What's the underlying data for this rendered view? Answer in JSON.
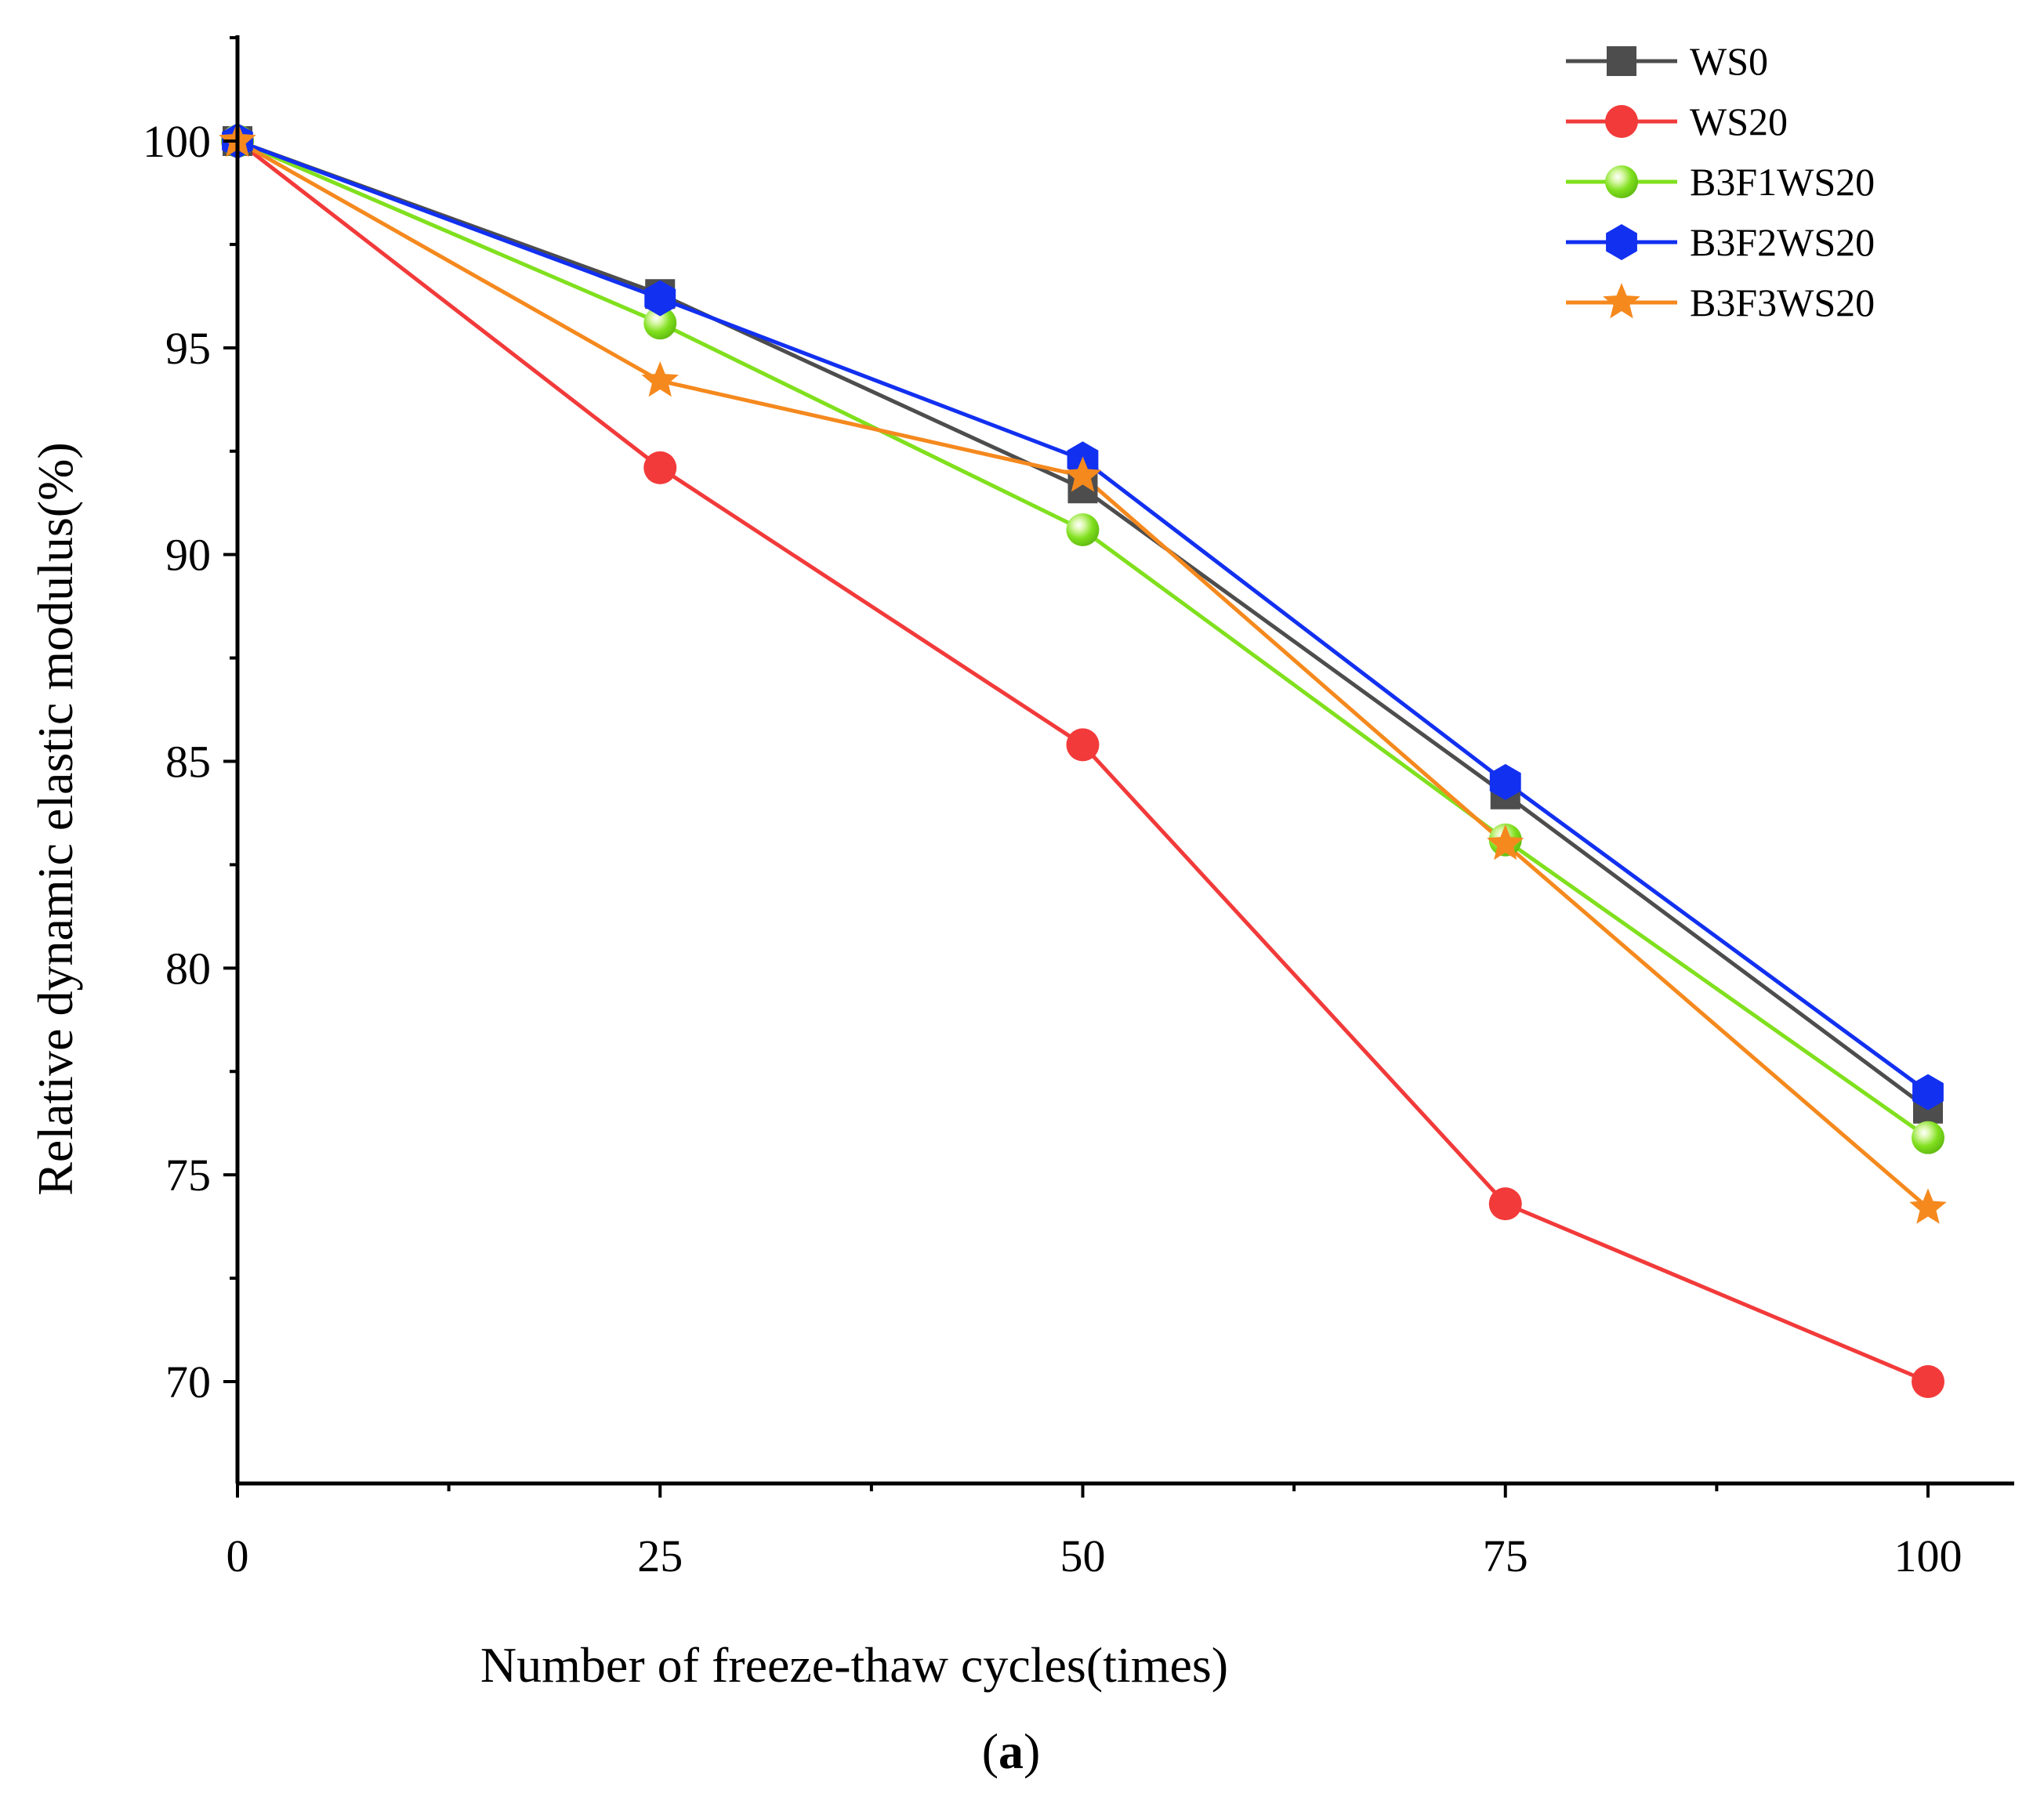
{
  "chart_data": {
    "type": "line",
    "xlabel": "Number of freeze-thaw cycles(times)",
    "ylabel": "Relative dynamic elastic modulus(%)",
    "caption": {
      "open": "(",
      "letter": "a",
      "close": ")"
    },
    "xlim": [
      0,
      104
    ],
    "ylim": [
      67.5,
      102.5
    ],
    "xticks": [
      0,
      25,
      50,
      75,
      100
    ],
    "xminor": [
      12.5,
      37.5,
      62.5,
      87.5
    ],
    "yticks": [
      70,
      75,
      80,
      85,
      90,
      95,
      100
    ],
    "yminor": [
      72.5,
      77.5,
      82.5,
      87.5,
      92.5,
      97.5
    ],
    "x": [
      0,
      25,
      50,
      75,
      100
    ],
    "series": [
      {
        "name": "WS0",
        "color": "#4d4d4d",
        "marker": "square",
        "values": [
          100,
          96.3,
          91.6,
          84.2,
          76.6
        ]
      },
      {
        "name": "WS20",
        "color": "#f23a3a",
        "marker": "circle",
        "values": [
          100,
          92.1,
          85.4,
          74.3,
          70.0
        ]
      },
      {
        "name": "B3F1WS20",
        "color": "#80e01e",
        "marker": "sphere",
        "values": [
          100,
          95.6,
          90.6,
          83.1,
          75.9
        ]
      },
      {
        "name": "B3F2WS20",
        "color": "#1230f0",
        "marker": "hexagon",
        "values": [
          100,
          96.2,
          92.3,
          84.5,
          77.0
        ]
      },
      {
        "name": "B3F3WS20",
        "color": "#f5891e",
        "marker": "star",
        "values": [
          100,
          94.2,
          91.9,
          83.0,
          74.2
        ]
      }
    ],
    "legend_position": "top-right",
    "grid": false
  }
}
